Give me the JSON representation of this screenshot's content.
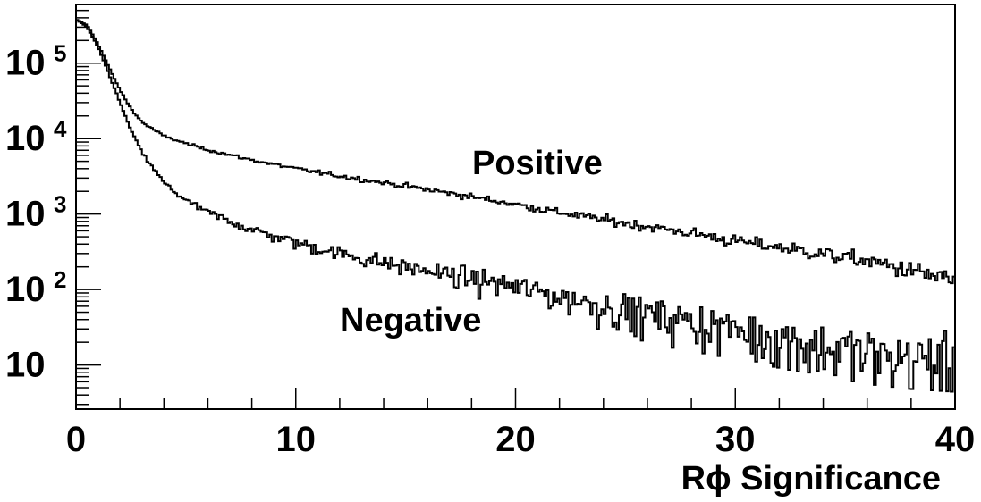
{
  "chart_data": {
    "type": "line",
    "style": "step-histogram",
    "xlabel": "Rϕ Significance",
    "xlim": [
      0,
      40
    ],
    "y_scale": "log",
    "ylim": [
      2.6,
      600000
    ],
    "grid": false,
    "legend": "none",
    "x_ticks": [
      {
        "value": 0,
        "label": "0"
      },
      {
        "value": 10,
        "label": "10"
      },
      {
        "value": 20,
        "label": "20"
      },
      {
        "value": 30,
        "label": "30"
      },
      {
        "value": 40,
        "label": "40"
      }
    ],
    "y_ticks": [
      {
        "value": 10,
        "base": "10",
        "exp": ""
      },
      {
        "value": 100,
        "base": "10",
        "exp": "2"
      },
      {
        "value": 1000,
        "base": "10",
        "exp": "3"
      },
      {
        "value": 10000,
        "base": "10",
        "exp": "4"
      },
      {
        "value": 100000,
        "base": "10",
        "exp": "5"
      }
    ],
    "series": [
      {
        "name": "Positive",
        "x": [
          0,
          0.5,
          1,
          1.5,
          2,
          2.5,
          3,
          4,
          5,
          6,
          8,
          10,
          12,
          15,
          18,
          20,
          22,
          25,
          28,
          30,
          33,
          36,
          38,
          40
        ],
        "y": [
          380000,
          320000,
          180000,
          88000,
          44000,
          25000,
          16500,
          10800,
          8600,
          7100,
          5200,
          4000,
          3200,
          2350,
          1700,
          1350,
          1050,
          760,
          560,
          440,
          330,
          240,
          180,
          130
        ]
      },
      {
        "name": "Negative",
        "x": [
          0,
          0.5,
          1,
          1.5,
          2,
          2.5,
          3,
          4,
          5,
          6,
          8,
          10,
          12,
          15,
          18,
          20,
          22,
          25,
          28,
          30,
          33,
          36,
          38,
          40
        ],
        "y": [
          380000,
          300000,
          165000,
          72000,
          30000,
          13000,
          6500,
          2600,
          1500,
          1050,
          620,
          420,
          300,
          200,
          140,
          110,
          80,
          55,
          38,
          30,
          20,
          14,
          12,
          11
        ]
      }
    ]
  },
  "colors": {
    "background": "#ffffff",
    "axis": "#000000",
    "series": "#000000"
  }
}
